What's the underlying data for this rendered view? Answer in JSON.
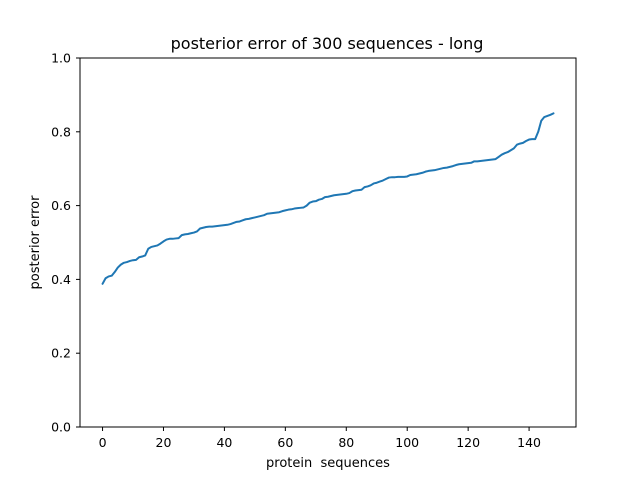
{
  "chart_data": {
    "type": "line",
    "title": "posterior error of 300 sequences - long",
    "xlabel": "protein  sequences",
    "ylabel": "posterior error",
    "xlim": [
      -7.4,
      155.4
    ],
    "ylim": [
      0.0,
      1.0
    ],
    "xticks": [
      0,
      20,
      40,
      60,
      80,
      100,
      120,
      140
    ],
    "yticks": [
      0.0,
      0.2,
      0.4,
      0.6,
      0.8,
      1.0
    ],
    "ytick_labels": [
      "0.0",
      "0.2",
      "0.4",
      "0.6",
      "0.8",
      "1.0"
    ],
    "grid": false,
    "line_color": "#1f77b4",
    "series": [
      {
        "x": [
          0,
          1,
          2,
          3,
          4,
          5,
          6,
          7,
          8,
          9,
          10,
          11,
          12,
          13,
          14,
          15,
          16,
          17,
          18,
          19,
          20,
          21,
          22,
          23,
          24,
          25,
          26,
          27,
          28,
          29,
          30,
          31,
          32,
          33,
          34,
          35,
          36,
          37,
          38,
          39,
          40,
          41,
          42,
          43,
          44,
          45,
          46,
          47,
          48,
          49,
          50,
          51,
          52,
          53,
          54,
          55,
          56,
          57,
          58,
          59,
          60,
          61,
          62,
          63,
          64,
          65,
          66,
          67,
          68,
          69,
          70,
          71,
          72,
          73,
          74,
          75,
          76,
          77,
          78,
          79,
          80,
          81,
          82,
          83,
          84,
          85,
          86,
          87,
          88,
          89,
          90,
          91,
          92,
          93,
          94,
          95,
          96,
          97,
          98,
          99,
          100,
          101,
          102,
          103,
          104,
          105,
          106,
          107,
          108,
          109,
          110,
          111,
          112,
          113,
          114,
          115,
          116,
          117,
          118,
          119,
          120,
          121,
          122,
          123,
          124,
          125,
          126,
          127,
          128,
          129,
          130,
          131,
          132,
          133,
          134,
          135,
          136,
          137,
          138,
          139,
          140,
          141,
          142,
          143,
          144,
          145,
          146,
          147,
          148
        ],
        "values": [
          0.388,
          0.403,
          0.408,
          0.41,
          0.42,
          0.432,
          0.44,
          0.445,
          0.447,
          0.45,
          0.452,
          0.453,
          0.46,
          0.462,
          0.465,
          0.483,
          0.488,
          0.49,
          0.492,
          0.497,
          0.503,
          0.508,
          0.51,
          0.51,
          0.511,
          0.512,
          0.52,
          0.522,
          0.523,
          0.525,
          0.527,
          0.53,
          0.538,
          0.54,
          0.542,
          0.543,
          0.543,
          0.544,
          0.545,
          0.546,
          0.547,
          0.548,
          0.55,
          0.553,
          0.556,
          0.557,
          0.56,
          0.563,
          0.564,
          0.566,
          0.568,
          0.57,
          0.572,
          0.574,
          0.578,
          0.579,
          0.58,
          0.581,
          0.582,
          0.585,
          0.587,
          0.589,
          0.59,
          0.592,
          0.593,
          0.594,
          0.595,
          0.6,
          0.608,
          0.611,
          0.612,
          0.616,
          0.618,
          0.623,
          0.624,
          0.626,
          0.628,
          0.629,
          0.63,
          0.631,
          0.632,
          0.634,
          0.639,
          0.641,
          0.642,
          0.643,
          0.65,
          0.652,
          0.655,
          0.66,
          0.662,
          0.665,
          0.668,
          0.672,
          0.676,
          0.677,
          0.677,
          0.678,
          0.678,
          0.678,
          0.679,
          0.683,
          0.684,
          0.685,
          0.687,
          0.689,
          0.692,
          0.694,
          0.695,
          0.696,
          0.698,
          0.7,
          0.702,
          0.703,
          0.705,
          0.707,
          0.71,
          0.712,
          0.713,
          0.714,
          0.715,
          0.716,
          0.72,
          0.72,
          0.721,
          0.722,
          0.723,
          0.724,
          0.725,
          0.726,
          0.732,
          0.738,
          0.742,
          0.745,
          0.75,
          0.755,
          0.765,
          0.768,
          0.77,
          0.775,
          0.779,
          0.78,
          0.78,
          0.8,
          0.83,
          0.84,
          0.843,
          0.846,
          0.85
        ]
      }
    ]
  }
}
